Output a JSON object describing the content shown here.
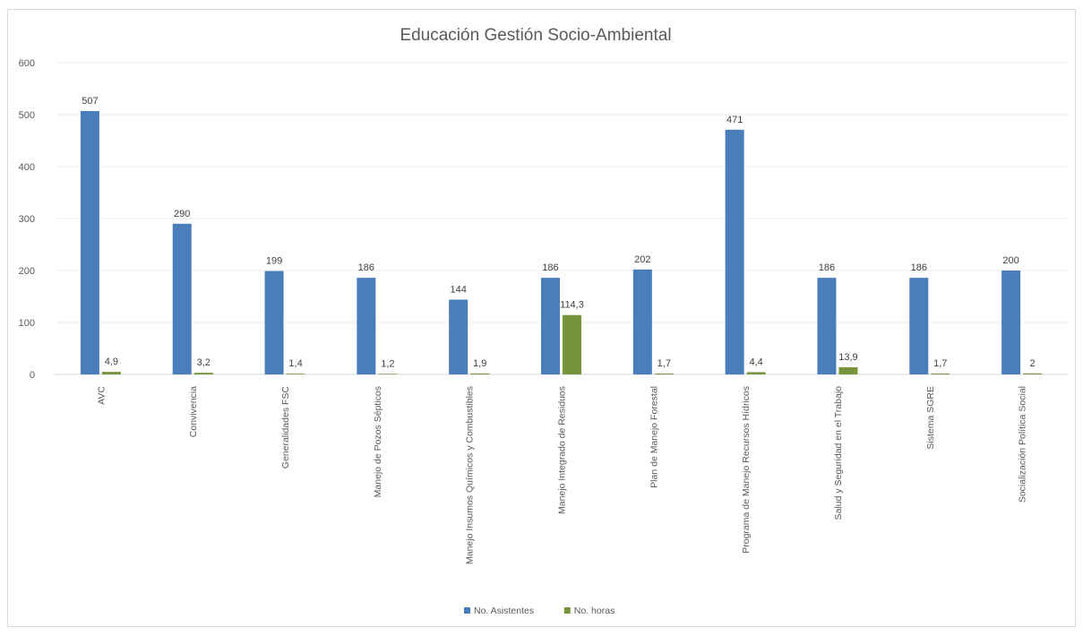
{
  "chart_data": {
    "type": "bar",
    "title": "Educación Gestión Socio-Ambiental",
    "xlabel": "",
    "ylabel": "",
    "ylim": [
      0,
      600
    ],
    "yticks": [
      0,
      100,
      200,
      300,
      400,
      500,
      600
    ],
    "grid": true,
    "legend_position": "bottom",
    "categories": [
      "AVC",
      "Convivencia",
      "Generalidades FSC",
      "Manejo de Pozos Sépticos",
      "Manejo Insumos Químicos y Combustibles",
      "Manejo Integrado de Residuos",
      "Plan de Manejo Forestal",
      "Programa de Manejo Recursos Hídricos",
      "Salud y Seguridad en el Trabajo",
      "Sistema SGRE",
      "Socialización Política Social"
    ],
    "series": [
      {
        "name": "No. Asistentes",
        "color": "#4a7ebb",
        "values": [
          507,
          290,
          199,
          186,
          144,
          186,
          202,
          471,
          186,
          186,
          200
        ],
        "labels": [
          "507",
          "290",
          "199",
          "186",
          "144",
          "186",
          "202",
          "471",
          "186",
          "186",
          "200"
        ]
      },
      {
        "name": "No. horas",
        "color": "#77933c",
        "values": [
          4.9,
          3.2,
          1.4,
          1.2,
          1.9,
          114.3,
          1.7,
          4.4,
          13.9,
          1.7,
          2
        ],
        "labels": [
          "4,9",
          "3,2",
          "1,4",
          "1,2",
          "1,9",
          "114,3",
          "1,7",
          "4,4",
          "13,9",
          "1,7",
          "2"
        ]
      }
    ]
  }
}
